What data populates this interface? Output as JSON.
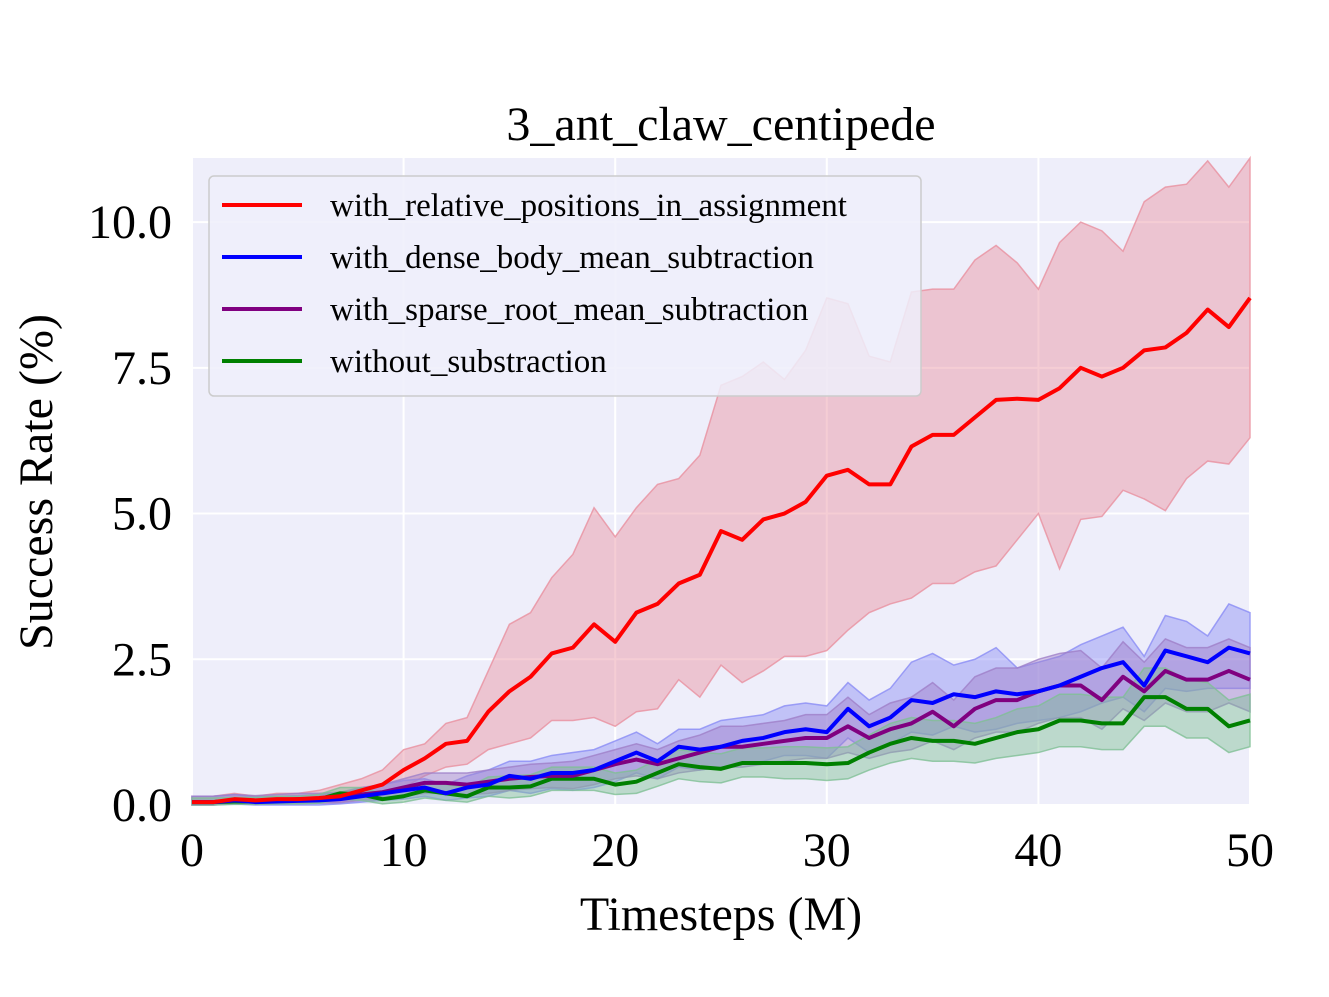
{
  "chart_data": {
    "type": "line",
    "title": "3_ant_claw_centipede",
    "xlabel": "Timesteps (M)",
    "ylabel": "Success Rate (%)",
    "xlim": [
      0,
      50
    ],
    "ylim": [
      0,
      11.1
    ],
    "xticks": [
      0,
      10,
      20,
      30,
      40,
      50
    ],
    "xtick_labels": [
      "0",
      "10",
      "20",
      "30",
      "40",
      "50"
    ],
    "yticks": [
      0,
      2.5,
      5.0,
      7.5,
      10.0
    ],
    "ytick_labels": [
      "0.0",
      "2.5",
      "5.0",
      "7.5",
      "10.0"
    ],
    "grid": true,
    "legend_position": "top-left",
    "x": [
      0,
      1,
      2,
      3,
      4,
      5,
      6,
      7,
      8,
      9,
      10,
      11,
      12,
      13,
      14,
      15,
      16,
      17,
      18,
      19,
      20,
      21,
      22,
      23,
      24,
      25,
      26,
      27,
      28,
      29,
      30,
      31,
      32,
      33,
      34,
      35,
      36,
      37,
      38,
      39,
      40,
      41,
      42,
      43,
      44,
      45,
      46,
      47,
      48,
      49,
      50
    ],
    "series": [
      {
        "name": "with_relative_positions_in_assignment",
        "color": "#ff0000",
        "band_color": "#e8909f",
        "mean": [
          0.05,
          0.05,
          0.1,
          0.08,
          0.1,
          0.1,
          0.12,
          0.15,
          0.25,
          0.35,
          0.6,
          0.8,
          1.05,
          1.1,
          1.6,
          1.95,
          2.2,
          2.6,
          2.7,
          3.1,
          2.8,
          3.3,
          3.45,
          3.8,
          3.95,
          4.7,
          4.55,
          4.9,
          5.0,
          5.2,
          5.65,
          5.75,
          5.5,
          5.5,
          6.15,
          6.35,
          6.35,
          6.65,
          6.95,
          6.97,
          6.95,
          7.15,
          7.5,
          7.35,
          7.5,
          7.8,
          7.85,
          8.1,
          8.5,
          8.2,
          8.7
        ],
        "upper": [
          0.15,
          0.15,
          0.2,
          0.15,
          0.2,
          0.2,
          0.25,
          0.35,
          0.45,
          0.6,
          0.95,
          1.05,
          1.4,
          1.5,
          2.3,
          3.1,
          3.3,
          3.9,
          4.3,
          5.1,
          4.6,
          5.1,
          5.5,
          5.6,
          6.0,
          7.2,
          7.35,
          7.6,
          7.3,
          7.8,
          8.7,
          8.6,
          7.7,
          7.6,
          8.8,
          8.85,
          8.85,
          9.35,
          9.6,
          9.3,
          8.85,
          9.65,
          10.0,
          9.85,
          9.5,
          10.35,
          10.6,
          10.65,
          11.05,
          10.6,
          11.1
        ],
        "lower": [
          0.0,
          0.0,
          0.05,
          0.02,
          0.03,
          0.03,
          0.04,
          0.05,
          0.1,
          0.15,
          0.3,
          0.5,
          0.65,
          0.7,
          0.95,
          1.05,
          1.15,
          1.45,
          1.45,
          1.5,
          1.35,
          1.6,
          1.65,
          2.15,
          1.85,
          2.4,
          2.1,
          2.3,
          2.55,
          2.55,
          2.65,
          3.0,
          3.3,
          3.45,
          3.55,
          3.8,
          3.8,
          4.0,
          4.1,
          4.55,
          5.0,
          4.05,
          4.9,
          4.95,
          5.4,
          5.25,
          5.05,
          5.6,
          5.9,
          5.85,
          6.3
        ]
      },
      {
        "name": "with_dense_body_mean_subtraction",
        "color": "#0000ff",
        "band_color": "#8a8cf5",
        "mean": [
          0.05,
          0.05,
          0.08,
          0.05,
          0.06,
          0.07,
          0.08,
          0.1,
          0.15,
          0.2,
          0.25,
          0.3,
          0.2,
          0.3,
          0.35,
          0.5,
          0.45,
          0.55,
          0.55,
          0.6,
          0.75,
          0.9,
          0.75,
          1.0,
          0.95,
          1.0,
          1.1,
          1.15,
          1.25,
          1.3,
          1.25,
          1.65,
          1.35,
          1.5,
          1.8,
          1.75,
          1.9,
          1.85,
          1.95,
          1.9,
          1.95,
          2.05,
          2.2,
          2.35,
          2.45,
          2.05,
          2.65,
          2.55,
          2.45,
          2.7,
          2.6
        ],
        "upper": [
          0.15,
          0.15,
          0.18,
          0.14,
          0.15,
          0.16,
          0.18,
          0.2,
          0.28,
          0.35,
          0.42,
          0.45,
          0.35,
          0.5,
          0.6,
          0.75,
          0.75,
          0.85,
          0.9,
          0.95,
          1.1,
          1.25,
          1.05,
          1.3,
          1.3,
          1.45,
          1.5,
          1.55,
          1.7,
          1.75,
          1.7,
          2.1,
          1.8,
          2.0,
          2.45,
          2.6,
          2.4,
          2.5,
          2.7,
          2.35,
          2.45,
          2.55,
          2.75,
          2.9,
          3.05,
          2.55,
          3.25,
          3.15,
          2.9,
          3.45,
          3.3
        ],
        "lower": [
          0.0,
          0.0,
          0.02,
          0.0,
          0.0,
          0.0,
          0.0,
          0.02,
          0.05,
          0.08,
          0.1,
          0.15,
          0.08,
          0.12,
          0.15,
          0.25,
          0.2,
          0.28,
          0.25,
          0.3,
          0.4,
          0.55,
          0.45,
          0.65,
          0.6,
          0.65,
          0.7,
          0.75,
          0.85,
          0.85,
          0.8,
          1.15,
          0.9,
          1.05,
          1.25,
          1.2,
          1.35,
          1.25,
          1.3,
          1.4,
          1.45,
          1.5,
          1.6,
          1.75,
          1.85,
          1.6,
          2.0,
          1.95,
          2.0,
          2.0,
          2.0
        ]
      },
      {
        "name": "with_sparse_root_mean_subtraction",
        "color": "#800080",
        "band_color": "#9f7fc8",
        "mean": [
          0.05,
          0.05,
          0.08,
          0.07,
          0.08,
          0.1,
          0.1,
          0.12,
          0.18,
          0.22,
          0.3,
          0.38,
          0.38,
          0.35,
          0.4,
          0.45,
          0.48,
          0.5,
          0.5,
          0.6,
          0.7,
          0.78,
          0.7,
          0.8,
          0.9,
          1.0,
          1.0,
          1.05,
          1.1,
          1.15,
          1.15,
          1.35,
          1.15,
          1.3,
          1.4,
          1.6,
          1.35,
          1.65,
          1.8,
          1.8,
          1.95,
          2.05,
          2.05,
          1.8,
          2.2,
          1.95,
          2.3,
          2.15,
          2.15,
          2.3,
          2.15
        ],
        "upper": [
          0.15,
          0.15,
          0.18,
          0.16,
          0.18,
          0.2,
          0.2,
          0.22,
          0.3,
          0.35,
          0.45,
          0.55,
          0.55,
          0.55,
          0.6,
          0.65,
          0.7,
          0.72,
          0.75,
          0.85,
          0.95,
          1.05,
          0.95,
          1.1,
          1.2,
          1.35,
          1.35,
          1.4,
          1.45,
          1.55,
          1.55,
          1.85,
          1.55,
          1.75,
          1.85,
          2.1,
          1.8,
          2.2,
          2.35,
          2.35,
          2.5,
          2.6,
          2.65,
          2.35,
          2.8,
          2.45,
          2.85,
          2.7,
          2.7,
          2.85,
          2.7
        ],
        "lower": [
          0.0,
          0.0,
          0.02,
          0.01,
          0.02,
          0.03,
          0.03,
          0.04,
          0.08,
          0.1,
          0.15,
          0.2,
          0.2,
          0.18,
          0.2,
          0.25,
          0.28,
          0.3,
          0.28,
          0.35,
          0.45,
          0.5,
          0.45,
          0.55,
          0.6,
          0.65,
          0.65,
          0.7,
          0.75,
          0.8,
          0.8,
          0.9,
          0.8,
          0.9,
          0.95,
          1.1,
          0.95,
          1.15,
          1.25,
          1.25,
          1.4,
          1.5,
          1.5,
          1.3,
          1.65,
          1.45,
          1.75,
          1.6,
          1.6,
          1.75,
          1.6
        ]
      },
      {
        "name": "without_substraction",
        "color": "#008000",
        "band_color": "#7fbf95",
        "mean": [
          0.05,
          0.05,
          0.06,
          0.06,
          0.08,
          0.08,
          0.1,
          0.2,
          0.18,
          0.1,
          0.15,
          0.25,
          0.2,
          0.15,
          0.3,
          0.3,
          0.32,
          0.45,
          0.45,
          0.45,
          0.35,
          0.4,
          0.55,
          0.7,
          0.65,
          0.62,
          0.72,
          0.72,
          0.72,
          0.72,
          0.7,
          0.72,
          0.9,
          1.05,
          1.15,
          1.1,
          1.1,
          1.05,
          1.15,
          1.25,
          1.3,
          1.45,
          1.45,
          1.4,
          1.4,
          1.85,
          1.85,
          1.65,
          1.65,
          1.35,
          1.45
        ],
        "upper": [
          0.12,
          0.12,
          0.13,
          0.13,
          0.15,
          0.15,
          0.18,
          0.3,
          0.3,
          0.2,
          0.28,
          0.4,
          0.35,
          0.3,
          0.48,
          0.5,
          0.52,
          0.65,
          0.65,
          0.65,
          0.55,
          0.6,
          0.78,
          0.95,
          0.9,
          0.88,
          0.98,
          0.98,
          1.0,
          1.0,
          0.98,
          1.0,
          1.2,
          1.4,
          1.5,
          1.45,
          1.45,
          1.4,
          1.5,
          1.65,
          1.7,
          1.9,
          1.9,
          1.85,
          1.85,
          2.35,
          2.35,
          2.15,
          2.1,
          1.8,
          1.9
        ],
        "lower": [
          0.0,
          0.0,
          0.01,
          0.01,
          0.02,
          0.02,
          0.03,
          0.1,
          0.08,
          0.02,
          0.05,
          0.12,
          0.08,
          0.05,
          0.15,
          0.12,
          0.15,
          0.25,
          0.25,
          0.25,
          0.18,
          0.2,
          0.32,
          0.45,
          0.4,
          0.38,
          0.48,
          0.48,
          0.45,
          0.45,
          0.42,
          0.45,
          0.6,
          0.72,
          0.8,
          0.75,
          0.75,
          0.72,
          0.8,
          0.85,
          0.9,
          1.0,
          1.0,
          0.95,
          0.95,
          1.35,
          1.35,
          1.15,
          1.15,
          0.9,
          1.0
        ]
      }
    ]
  }
}
